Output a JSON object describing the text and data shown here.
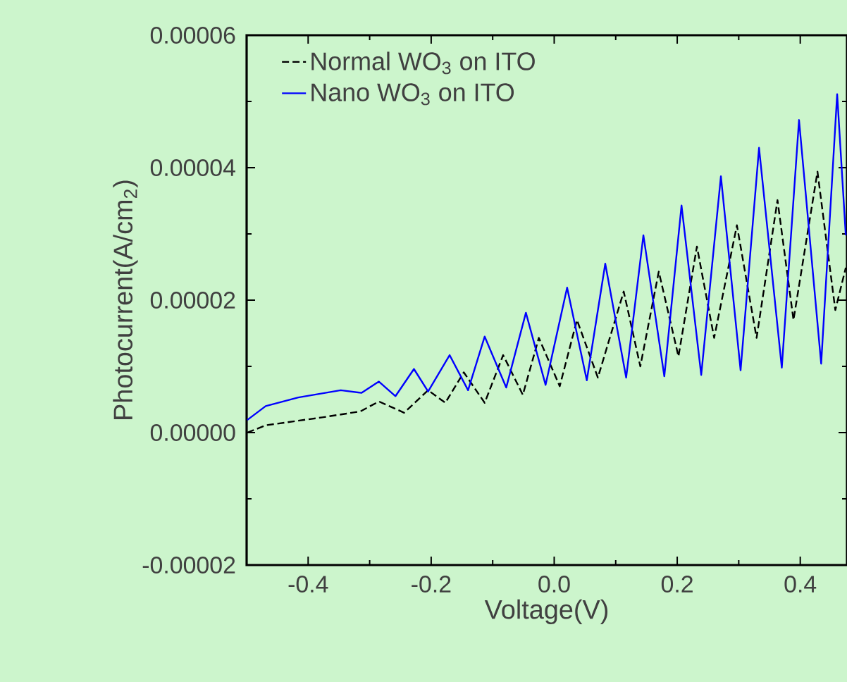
{
  "chart_data": {
    "type": "line",
    "xlabel": "Voltage(V)",
    "ylabel": "Photocurrent(A/cm$_{2}$)",
    "xlim": [
      -0.5,
      0.476
    ],
    "ylim": [
      -2e-05,
      6e-05
    ],
    "xticks": [
      {
        "value": -0.4,
        "label": "-0.4"
      },
      {
        "value": -0.2,
        "label": "-0.2"
      },
      {
        "value": 0,
        "label": "0.0"
      },
      {
        "value": 0.2,
        "label": "0.2"
      },
      {
        "value": 0.4,
        "label": "0.4"
      }
    ],
    "yticks": [
      {
        "value": -2e-05,
        "label": "-0.00002"
      },
      {
        "value": 0,
        "label": "0.00000"
      },
      {
        "value": 2e-05,
        "label": "0.00002"
      },
      {
        "value": 4e-05,
        "label": "0.00004"
      },
      {
        "value": 6e-05,
        "label": "0.00006"
      }
    ],
    "grid": false,
    "legend": "top left",
    "marker": "none",
    "series": [
      {
        "name": "Normal WO$_{3}$ on ITO",
        "color": "#000000",
        "line_style": "dashed",
        "x": [
          -0.499,
          -0.469,
          -0.377,
          -0.315,
          -0.285,
          -0.244,
          -0.205,
          -0.177,
          -0.147,
          -0.113,
          -0.083,
          -0.051,
          -0.025,
          0.009,
          0.037,
          0.071,
          0.113,
          0.14,
          0.17,
          0.202,
          0.232,
          0.26,
          0.297,
          0.329,
          0.363,
          0.389,
          0.428,
          0.457,
          0.474
        ],
        "values": [
          0.0,
          1.1e-06,
          2.3e-06,
          3.2e-06,
          4.7e-06,
          3e-06,
          6.4e-06,
          4.5e-06,
          9.1e-06,
          4.5e-06,
          1.17e-05,
          5.7e-06,
          1.43e-05,
          7e-06,
          1.7e-05,
          8.3e-06,
          2.13e-05,
          1e-05,
          2.43e-05,
          1.15e-05,
          2.81e-05,
          1.43e-05,
          3.13e-05,
          1.43e-05,
          3.51e-05,
          1.7e-05,
          3.94e-05,
          1.85e-05,
          2.49e-05
        ]
      },
      {
        "name": "Nano WO$_{3}$ on ITO",
        "color": "#0000ff",
        "line_style": "solid",
        "x": [
          -0.499,
          -0.469,
          -0.416,
          -0.347,
          -0.313,
          -0.285,
          -0.258,
          -0.228,
          -0.205,
          -0.17,
          -0.14,
          -0.113,
          -0.078,
          -0.046,
          -0.014,
          0.021,
          0.053,
          0.083,
          0.117,
          0.145,
          0.179,
          0.207,
          0.239,
          0.271,
          0.303,
          0.333,
          0.37,
          0.398,
          0.434,
          0.46,
          0.474
        ],
        "values": [
          1.9e-06,
          4e-06,
          5.3e-06,
          6.4e-06,
          6e-06,
          7.7e-06,
          5.5e-06,
          9.6e-06,
          6.2e-06,
          1.17e-05,
          6.4e-06,
          1.45e-05,
          6.8e-06,
          1.81e-05,
          7.2e-06,
          2.19e-05,
          7.9e-06,
          2.55e-05,
          8.3e-06,
          2.98e-05,
          8.5e-06,
          3.43e-05,
          8.7e-06,
          3.87e-05,
          9.4e-06,
          4.3e-05,
          9.8e-06,
          4.72e-05,
          1.04e-05,
          5.11e-05,
          2.98e-05
        ]
      }
    ]
  }
}
